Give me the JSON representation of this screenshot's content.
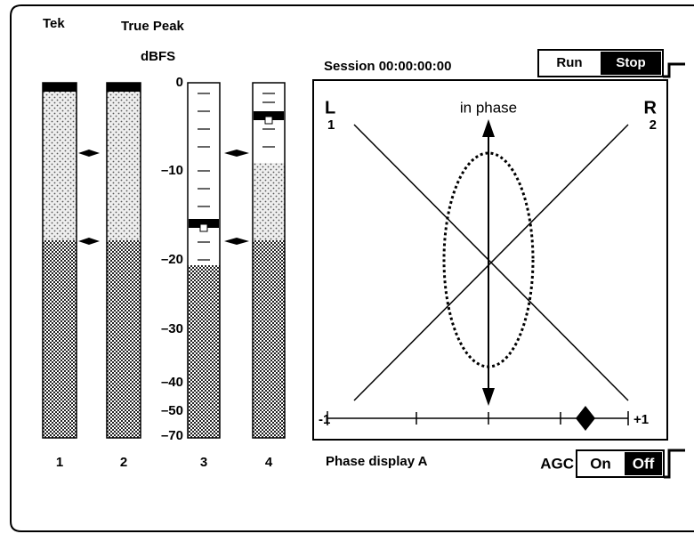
{
  "header": {
    "brand": "Tek",
    "mode": "True Peak",
    "unit": "dBFS"
  },
  "scale": {
    "labels": [
      "0",
      "–10",
      "–20",
      "–30",
      "–40",
      "–50",
      "–70"
    ]
  },
  "meters": {
    "labels": [
      "1",
      "2",
      "3",
      "4"
    ]
  },
  "session": {
    "label": "Session 00:00:00:00",
    "run": "Run",
    "stop": "Stop"
  },
  "phase": {
    "left": "L",
    "left_channel": "1",
    "right": "R",
    "right_channel": "2",
    "annotation": "in phase",
    "min_label": "-1",
    "max_label": "+1",
    "title": "Phase display A"
  },
  "agc": {
    "label": "AGC",
    "on": "On",
    "off": "Off"
  }
}
